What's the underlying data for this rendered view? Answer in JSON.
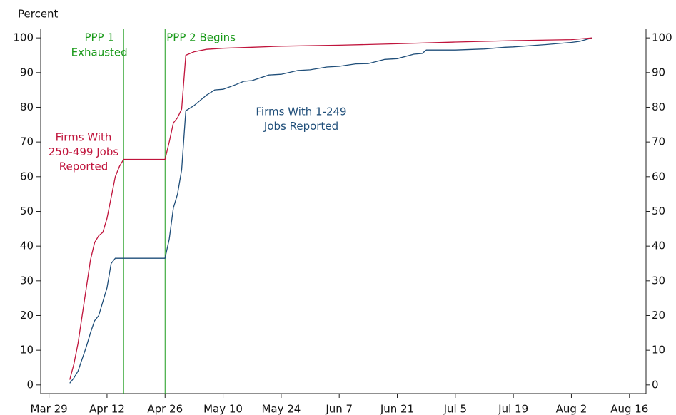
{
  "chart_data": {
    "type": "line",
    "y_label": "Percent",
    "xlim": [
      "Mar 27",
      "Aug 20"
    ],
    "xticks": [
      "Mar 29",
      "Apr 12",
      "Apr 26",
      "May 10",
      "May 24",
      "Jun 7",
      "Jun 21",
      "Jul 5",
      "Jul 19",
      "Aug 2",
      "Aug 16"
    ],
    "ylim": [
      -2.5,
      102.7
    ],
    "yticks": [
      0,
      10,
      20,
      30,
      40,
      50,
      60,
      70,
      80,
      90,
      100
    ],
    "right_axis": true,
    "series": [
      {
        "name": "Firms With 1-249 Jobs Reported",
        "label_lines": [
          "Firms With 1-249",
          "Jobs Reported"
        ],
        "color": "#1f4e79",
        "x": [
          "Apr 3",
          "Apr 4",
          "Apr 5",
          "Apr 6",
          "Apr 7",
          "Apr 8",
          "Apr 9",
          "Apr 10",
          "Apr 11",
          "Apr 12",
          "Apr 13",
          "Apr 14",
          "Apr 26",
          "Apr 27",
          "Apr 28",
          "Apr 29",
          "Apr 30",
          "May 1",
          "May 3",
          "May 6",
          "May 8",
          "May 10",
          "May 13",
          "May 15",
          "May 17",
          "May 21",
          "May 24",
          "May 28",
          "May 31",
          "Jun 4",
          "Jun 7",
          "Jun 11",
          "Jun 14",
          "Jun 18",
          "Jun 21",
          "Jun 25",
          "Jun 27",
          "Jun 28",
          "Jul 5",
          "Jul 12",
          "Jul 17",
          "Jul 19",
          "Jul 26",
          "Aug 2",
          "Aug 4",
          "Aug 7"
        ],
        "values": [
          0.5,
          2,
          4,
          7.5,
          11,
          15,
          18.5,
          20,
          24,
          28,
          35,
          36.5,
          36.5,
          42,
          51,
          55,
          62,
          79,
          80.5,
          83.5,
          85,
          85.2,
          86.5,
          87.5,
          87.7,
          89.3,
          89.5,
          90.6,
          90.8,
          91.6,
          91.8,
          92.5,
          92.6,
          93.8,
          94,
          95.3,
          95.5,
          96.5,
          96.5,
          96.8,
          97.3,
          97.4,
          98,
          98.7,
          99,
          100
        ]
      },
      {
        "name": "Firms With 250-499 Jobs Reported",
        "label_lines": [
          "Firms With",
          "250-499 Jobs",
          "Reported"
        ],
        "color": "#c0143c",
        "x": [
          "Apr 3",
          "Apr 4",
          "Apr 5",
          "Apr 6",
          "Apr 7",
          "Apr 8",
          "Apr 9",
          "Apr 10",
          "Apr 11",
          "Apr 12",
          "Apr 13",
          "Apr 14",
          "Apr 15",
          "Apr 16",
          "Apr 26",
          "Apr 27",
          "Apr 28",
          "Apr 29",
          "Apr 30",
          "May 1",
          "May 3",
          "May 6",
          "May 10",
          "May 17",
          "May 24",
          "Jun 7",
          "Jun 21",
          "Jul 5",
          "Jul 19",
          "Aug 2",
          "Aug 7"
        ],
        "values": [
          1.5,
          6,
          12,
          20,
          28,
          36,
          41,
          43,
          44,
          48,
          54,
          60,
          63,
          65,
          65,
          70,
          75.5,
          77,
          79.5,
          95,
          96,
          96.7,
          97,
          97.3,
          97.6,
          97.9,
          98.3,
          98.8,
          99.2,
          99.5,
          100
        ]
      }
    ],
    "events": [
      {
        "x": "Apr 16",
        "label_lines": [
          "PPP 1",
          "Exhausted"
        ],
        "color": "#1a9a1a"
      },
      {
        "x": "Apr 26",
        "label_lines": [
          "PPP 2 Begins"
        ],
        "color": "#1a9a1a"
      }
    ]
  }
}
